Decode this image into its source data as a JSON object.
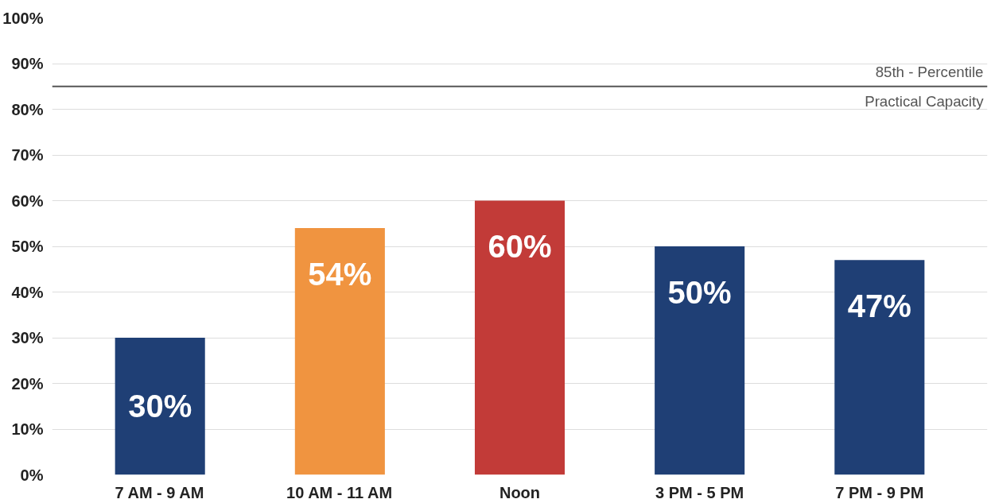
{
  "chart_data": {
    "type": "bar",
    "categories": [
      "7 AM - 9 AM",
      "10 AM - 11 AM",
      "Noon",
      "3 PM - 5 PM",
      "7 PM - 9 PM"
    ],
    "values": [
      30,
      54,
      60,
      50,
      47
    ],
    "colors": [
      "#1f3f75",
      "#f09440",
      "#c23b38",
      "#1f3f75",
      "#1f3f75"
    ],
    "ylim": [
      0,
      100
    ],
    "yticks": [
      {
        "value": 0,
        "label": "0%"
      },
      {
        "value": 10,
        "label": "10%"
      },
      {
        "value": 20,
        "label": "20%"
      },
      {
        "value": 30,
        "label": "30%"
      },
      {
        "value": 40,
        "label": "40%"
      },
      {
        "value": 50,
        "label": "50%"
      },
      {
        "value": 60,
        "label": "60%"
      },
      {
        "value": 70,
        "label": "70%"
      },
      {
        "value": 80,
        "label": "80%"
      },
      {
        "value": 90,
        "label": "90%"
      },
      {
        "value": 100,
        "label": "100%"
      }
    ],
    "value_labels": [
      "30%",
      "54%",
      "60%",
      "50%",
      "47%"
    ],
    "grid": "y",
    "ref_lines": [
      {
        "axis": "y",
        "value": 85,
        "label": "85th - Percentile\nPractical Capacity",
        "color": "#555555"
      }
    ]
  }
}
